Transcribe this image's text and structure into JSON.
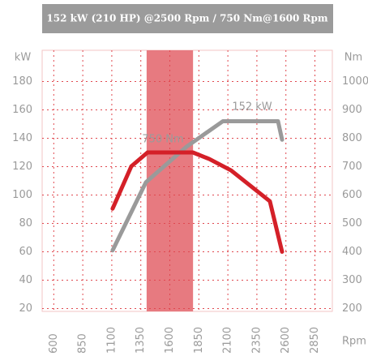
{
  "chart_data": {
    "type": "line",
    "title": "152 kW (210 HP) @2500 Rpm / 750 Nm@1600 Rpm",
    "xlabel": "Rpm",
    "ylabel": "kW",
    "y2label": "Nm",
    "xlim": [
      500,
      3000
    ],
    "xticks": [
      600,
      850,
      1100,
      1350,
      1600,
      1850,
      2100,
      2350,
      2600,
      2850
    ],
    "ylim": [
      18,
      202
    ],
    "yticks": [
      20,
      40,
      60,
      80,
      100,
      120,
      140,
      160,
      180
    ],
    "y2lim": [
      190,
      1110
    ],
    "y2ticks": [
      200,
      300,
      400,
      500,
      600,
      700,
      800,
      900,
      1000
    ],
    "grid": true,
    "highlight_band": {
      "range": [
        1400,
        1800
      ],
      "color": "#e77a80"
    },
    "series": [
      {
        "name": "152 kW",
        "color": "#9a9a9a",
        "axis": "y",
        "x": [
          1107,
          1394,
          1743,
          2057,
          2532,
          2567
        ],
        "values": [
          61,
          109,
          134,
          152,
          152,
          139
        ]
      },
      {
        "name": "750 Nm",
        "color": "#d42028",
        "axis": "y2",
        "x": [
          1107,
          1268,
          1408,
          1799,
          1940,
          2127,
          2462,
          2567
        ],
        "values": [
          552,
          701,
          750,
          750,
          727,
          687,
          578,
          400
        ]
      }
    ]
  }
}
